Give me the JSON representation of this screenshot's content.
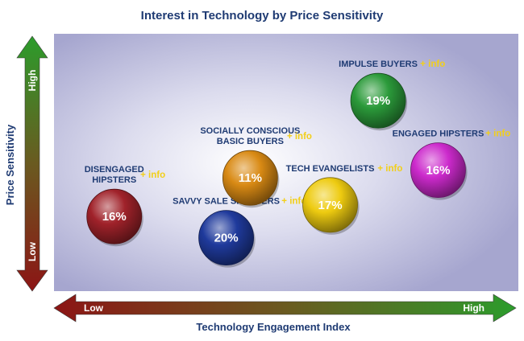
{
  "chart_data": {
    "type": "scatter",
    "title": "Interest in Technology by Price Sensitivity",
    "xlabel": "Technology Engagement Index",
    "ylabel": "Price Sensitivity",
    "x_axis_ends": {
      "low": "Low",
      "high": "High"
    },
    "y_axis_ends": {
      "low": "Low",
      "high": "High"
    },
    "xlim": [
      0,
      100
    ],
    "ylim": [
      0,
      100
    ],
    "grid": false,
    "info_label": "+ info",
    "points": [
      {
        "label": [
          "DISENGAGED",
          "HIPSTERS"
        ],
        "value": "16%",
        "x": 7,
        "y": 22,
        "color": "#a0222a"
      },
      {
        "label": [
          "SAVVY SALE SHOPPERS"
        ],
        "value": "20%",
        "x": 35,
        "y": 11,
        "color": "#1f3a9c"
      },
      {
        "label": [
          "SOCIALLY CONSCIOUS",
          "BASIC BUYERS"
        ],
        "value": "11%",
        "x": 41,
        "y": 42,
        "color": "#d98a14"
      },
      {
        "label": [
          "TECH EVANGELISTS"
        ],
        "value": "17%",
        "x": 61,
        "y": 28,
        "color": "#eecb10"
      },
      {
        "label": [
          "IMPULSE BUYERS"
        ],
        "value": "19%",
        "x": 73,
        "y": 82,
        "color": "#2b9a3a"
      },
      {
        "label": [
          "ENGAGED HIPSTERS"
        ],
        "value": "16%",
        "x": 88,
        "y": 46,
        "color": "#cc2acc"
      }
    ]
  }
}
